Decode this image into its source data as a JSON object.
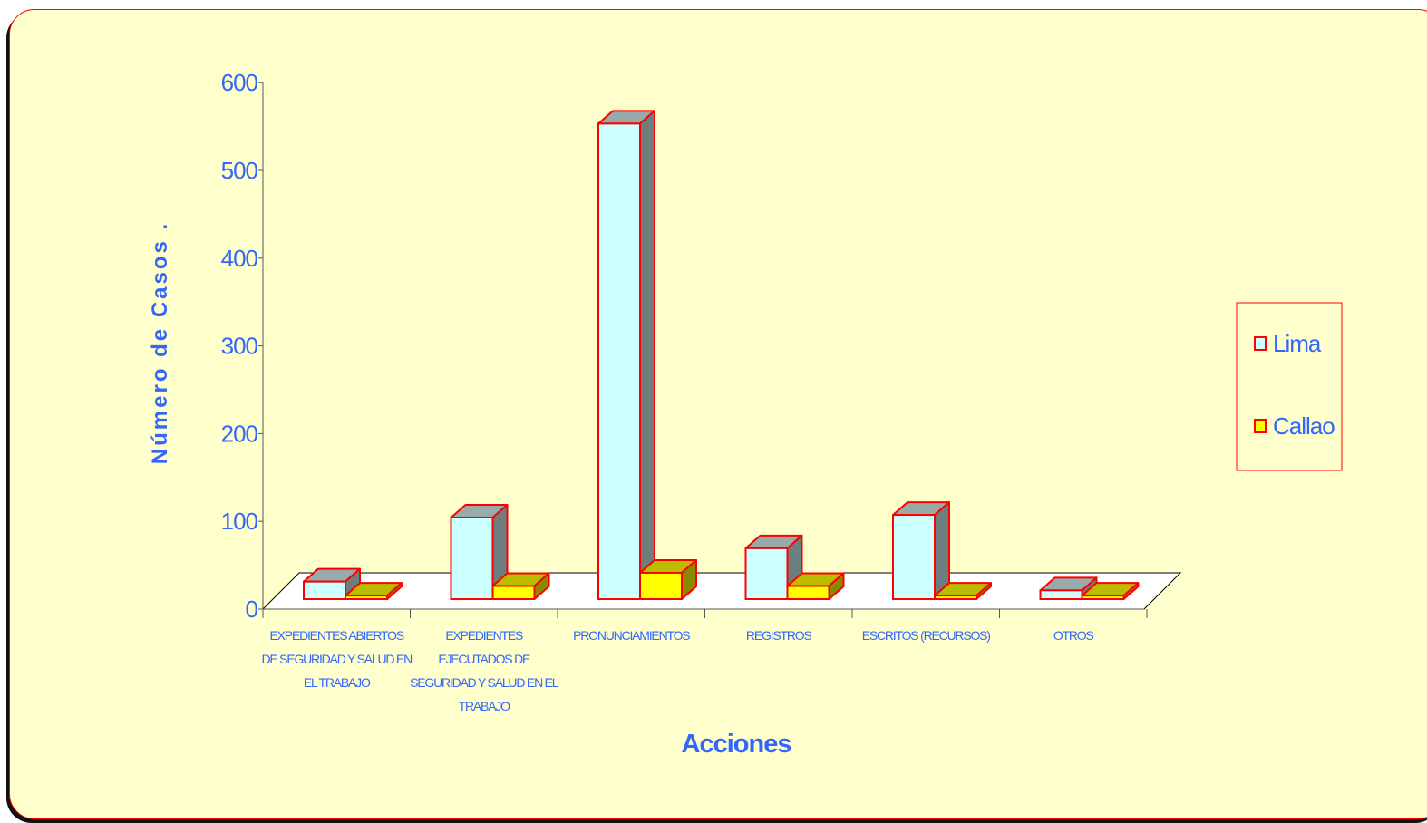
{
  "chart_data": {
    "type": "bar",
    "title": "",
    "xlabel": "Acciones",
    "ylabel": "Número de Casos  .",
    "ylim": [
      0,
      600
    ],
    "yticks": [
      "0",
      "100",
      "200",
      "300",
      "400",
      "500",
      "600"
    ],
    "categories": [
      [
        "EXPEDIENTES ABIERTOS",
        "DE SEGURIDAD Y SALUD EN",
        "EL TRABAJO"
      ],
      [
        "EXPEDIENTES",
        "EJECUTADOS DE",
        "SEGURIDAD Y SALUD EN EL",
        "TRABAJO"
      ],
      [
        "PRONUNCIAMIENTOS"
      ],
      [
        "REGISTROS"
      ],
      [
        "ESCRITOS (RECURSOS)"
      ],
      [
        "OTROS"
      ]
    ],
    "series": [
      {
        "name": "Lima",
        "values": [
          20,
          93,
          542,
          58,
          96,
          10
        ],
        "front": "#ccffff",
        "top": "#99aaaa",
        "side": "#6e7e7e"
      },
      {
        "name": "Callao",
        "values": [
          4,
          15,
          30,
          15,
          4,
          4
        ],
        "front": "#ffff00",
        "top": "#bbbb00",
        "side": "#8a8a00"
      }
    ],
    "legend_position": "right",
    "grid": false,
    "colors": {
      "outline": "#ff0000",
      "text": "#3366ff",
      "background": "#ffffcc",
      "floor": "#ffffff"
    }
  }
}
